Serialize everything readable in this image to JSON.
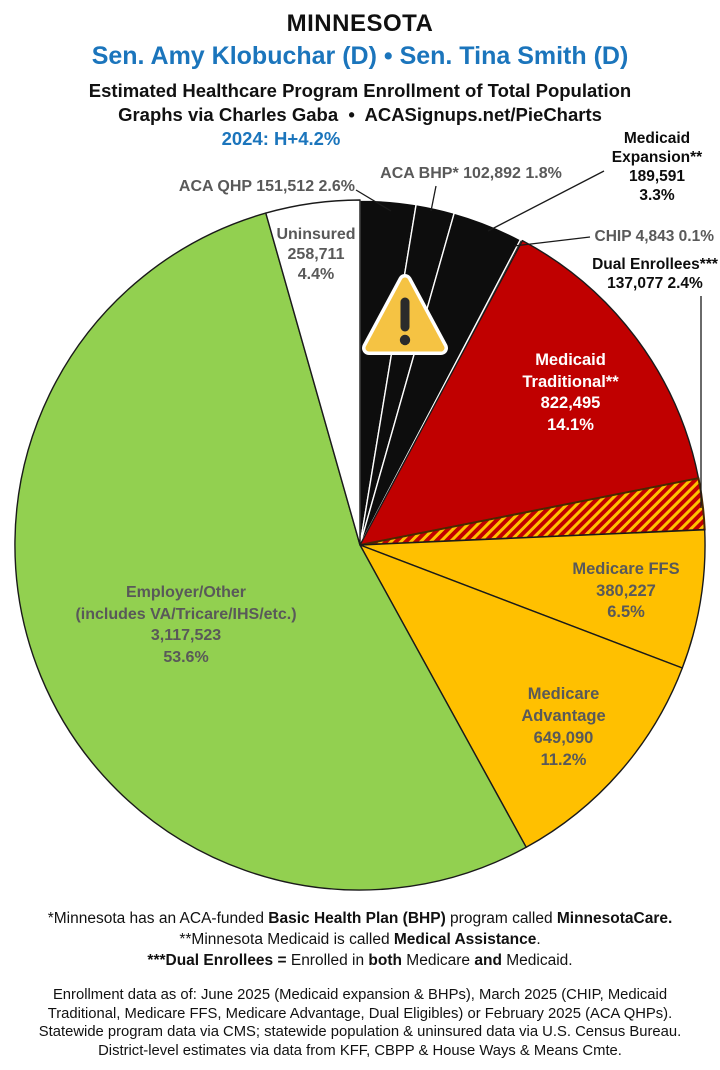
{
  "header": {
    "state": "MINNESOTA",
    "senators": "Sen. Amy Klobuchar (D) • Sen. Tina Smith (D)",
    "subtitle_line1": "Estimated Healthcare Program Enrollment of Total Population",
    "subtitle_line2": "Graphs via Charles Gaba  •  ACASignups.net/PieCharts",
    "partisan_lean": "2024: H+4.2%"
  },
  "colors": {
    "accent_blue": "#1b75bc",
    "label_gray": "#595959",
    "black_slice": "#0d0d0d",
    "red_slice": "#c00000",
    "gold_slice": "#ffc000",
    "green_slice": "#92d050",
    "white_slice": "#ffffff",
    "warning_gold": "#f5c343"
  },
  "chart_data": {
    "type": "pie",
    "title": "Estimated Healthcare Program Enrollment of Total Population",
    "rotation_start_deg": 0,
    "legend_position": "labels-around-pie",
    "hatch": {
      "background": "#c00000",
      "stripe": "#ffc000"
    },
    "slices": [
      {
        "id": "aca-qhp",
        "name": "ACA QHP",
        "enrollment": 151512,
        "display": "151,512",
        "pct": 2.6,
        "color": "#0d0d0d",
        "stroke": "#ffffff"
      },
      {
        "id": "aca-bhp",
        "name": "ACA BHP*",
        "enrollment": 102892,
        "display": "102,892",
        "pct": 1.8,
        "color": "#0d0d0d",
        "stroke": "#ffffff"
      },
      {
        "id": "medicaid-expansion",
        "name": "Medicaid Expansion**",
        "enrollment": 189591,
        "display": "189,591",
        "pct": 3.3,
        "color": "#0d0d0d",
        "stroke": "#ffffff"
      },
      {
        "id": "chip",
        "name": "CHIP",
        "enrollment": 4843,
        "display": "4,843",
        "pct": 0.1,
        "color": "#0d0d0d",
        "stroke": "#ffffff"
      },
      {
        "id": "medicaid-traditional",
        "name": "Medicaid Traditional**",
        "enrollment": 822495,
        "display": "822,495",
        "pct": 14.1,
        "color": "#c00000",
        "stroke": "#1a1a1a"
      },
      {
        "id": "dual-enrollees",
        "name": "Dual Enrollees***",
        "enrollment": 137077,
        "display": "137,077",
        "pct": 2.4,
        "color": "hatch",
        "stroke": "#4a2800"
      },
      {
        "id": "medicare-ffs",
        "name": "Medicare FFS",
        "enrollment": 380227,
        "display": "380,227",
        "pct": 6.5,
        "color": "#ffc000",
        "stroke": "#1a1a1a"
      },
      {
        "id": "medicare-advantage",
        "name": "Medicare Advantage",
        "enrollment": 649090,
        "display": "649,090",
        "pct": 11.2,
        "color": "#ffc000",
        "stroke": "#1a1a1a"
      },
      {
        "id": "employer-other",
        "name": "Employer/Other (includes VA/Tricare/IHS/etc.)",
        "enrollment": 3117523,
        "display": "3,117,523",
        "pct": 53.6,
        "color": "#92d050",
        "stroke": "#1a1a1a"
      },
      {
        "id": "uninsured",
        "name": "Uninsured",
        "enrollment": 258711,
        "display": "258,711",
        "pct": 4.4,
        "color": "#ffffff",
        "stroke": "#1a1a1a"
      }
    ]
  },
  "labels": {
    "aca_qhp": "ACA QHP 151,512 2.6%",
    "aca_bhp": "ACA BHP* 102,892 1.8%",
    "chip": "CHIP 4,843 0.1%",
    "medicaid_expansion": [
      "Medicaid",
      "Expansion**",
      "189,591",
      "3.3%"
    ],
    "dual_enrollees": [
      "Dual Enrollees***",
      "137,077 2.4%"
    ],
    "uninsured": [
      "Uninsured",
      "258,711",
      "4.4%"
    ],
    "medicaid_traditional": [
      "Medicaid",
      "Traditional**",
      "822,495",
      "14.1%"
    ],
    "medicare_ffs": [
      "Medicare FFS",
      "380,227",
      "6.5%"
    ],
    "medicare_advantage": [
      "Medicare",
      "Advantage",
      "649,090",
      "11.2%"
    ],
    "employer_other": [
      "Employer/Other",
      "(includes VA/Tricare/IHS/etc.)",
      "3,117,523",
      "53.6%"
    ]
  },
  "footnotes": {
    "lines": [
      [
        {
          "t": "*Minnesota has an ACA-funded ",
          "b": false
        },
        {
          "t": "Basic Health Plan (BHP)",
          "b": true
        },
        {
          "t": " program called ",
          "b": false
        },
        {
          "t": "MinnesotaCare.",
          "b": true
        }
      ],
      [
        {
          "t": "**Minnesota Medicaid is called ",
          "b": false
        },
        {
          "t": "Medical Assistance",
          "b": true
        },
        {
          "t": ".",
          "b": false
        }
      ],
      [
        {
          "t": "***Dual Enrollees =",
          "b": true
        },
        {
          "t": " Enrolled in ",
          "b": false
        },
        {
          "t": "both",
          "b": true
        },
        {
          "t": " Medicare ",
          "b": false
        },
        {
          "t": "and",
          "b": true
        },
        {
          "t": " Medicaid.",
          "b": false
        }
      ]
    ]
  },
  "source_note": {
    "lines": [
      "Enrollment data as of: June 2025 (Medicaid expansion & BHPs), March 2025 (CHIP, Medicaid",
      "Traditional, Medicare FFS, Medicare Advantage, Dual Eligibles) or February 2025 (ACA QHPs).",
      "Statewide program data via CMS; statewide population & uninsured data via U.S. Census Bureau.",
      "District-level estimates via data from KFF, CBPP & House Ways & Means Cmte."
    ]
  }
}
